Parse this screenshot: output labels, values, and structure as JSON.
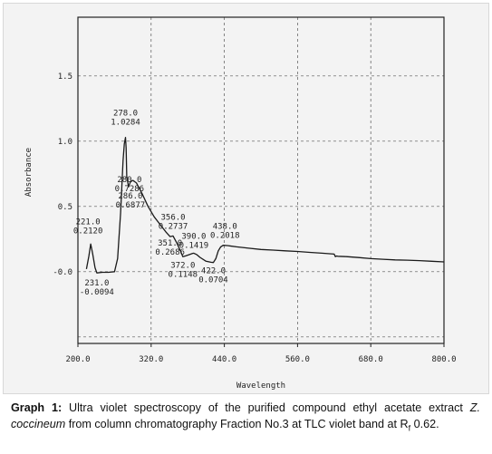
{
  "chart_data": {
    "type": "line",
    "xlabel": "Wavelength",
    "ylabel": "Absorbance",
    "xlim": [
      200,
      800
    ],
    "ylim": [
      -0.55,
      1.95
    ],
    "x_ticks": [
      "200.0",
      "320.0",
      "440.0",
      "560.0",
      "680.0",
      "800.0"
    ],
    "y_ticks": [
      "-0.0",
      "0.5",
      "1.0",
      "1.5"
    ],
    "grid": true,
    "series": [
      {
        "x": [
          214,
          218,
          221,
          224,
          228,
          231,
          240,
          250,
          260,
          265,
          270,
          274,
          276,
          278,
          279,
          280,
          283,
          286,
          290,
          296,
          305,
          315,
          325,
          335,
          345,
          351,
          356,
          362,
          368,
          372,
          376,
          382,
          388,
          390,
          395,
          400,
          410,
          418,
          422,
          426,
          430,
          434,
          438,
          445,
          460,
          480,
          500,
          520,
          540,
          560,
          580,
          600,
          620,
          622,
          624,
          626,
          640,
          660,
          680,
          700,
          720,
          740,
          760,
          780,
          800
        ],
        "y": [
          0.02,
          0.12,
          0.212,
          0.14,
          0.03,
          -0.0094,
          -0.005,
          -0.005,
          0.0,
          0.1,
          0.45,
          0.85,
          0.98,
          1.0284,
          0.95,
          0.7286,
          0.65,
          0.6877,
          0.7,
          0.68,
          0.6,
          0.5,
          0.42,
          0.36,
          0.3,
          0.2686,
          0.2737,
          0.22,
          0.16,
          0.1148,
          0.12,
          0.13,
          0.14,
          0.1419,
          0.13,
          0.11,
          0.08,
          0.072,
          0.0704,
          0.1,
          0.16,
          0.19,
          0.2018,
          0.2,
          0.19,
          0.18,
          0.17,
          0.165,
          0.16,
          0.155,
          0.148,
          0.142,
          0.135,
          0.115,
          0.12,
          0.118,
          0.115,
          0.108,
          0.1,
          0.095,
          0.09,
          0.088,
          0.085,
          0.08,
          0.075
        ]
      }
    ],
    "peak_labels": [
      {
        "wavelength": "221.0",
        "absorbance": "0.2120",
        "x": 221.0,
        "y": 0.212,
        "side": "above"
      },
      {
        "wavelength": "231.0",
        "absorbance": "-0.0094",
        "x": 231.0,
        "y": -0.0094,
        "side": "below"
      },
      {
        "wavelength": "278.0",
        "absorbance": "1.0284",
        "x": 278.0,
        "y": 1.0284,
        "side": "above"
      },
      {
        "wavelength": "280.0",
        "absorbance": "0.7286",
        "x": 280.0,
        "y": 0.7286,
        "side": "above"
      },
      {
        "wavelength": "286.0",
        "absorbance": "0.6877",
        "x": 286.0,
        "y": 0.6877,
        "side": "below"
      },
      {
        "wavelength": "356.0",
        "absorbance": "0.2737",
        "x": 356.0,
        "y": 0.2737,
        "side": "above"
      },
      {
        "wavelength": "351.0",
        "absorbance": "0.2686",
        "x": 351.0,
        "y": 0.2686,
        "side": "below"
      },
      {
        "wavelength": "390.0",
        "absorbance": "0.1419",
        "x": 390.0,
        "y": 0.1419,
        "side": "above"
      },
      {
        "wavelength": "372.0",
        "absorbance": "0.1148",
        "x": 372.0,
        "y": 0.1148,
        "side": "below"
      },
      {
        "wavelength": "422.0",
        "absorbance": "0.0704",
        "x": 422.0,
        "y": 0.0704,
        "side": "below"
      },
      {
        "wavelength": "438.0",
        "absorbance": "0.2018",
        "x": 438.0,
        "y": 0.2018,
        "side": "above"
      }
    ]
  },
  "caption": {
    "label": "Graph 1:",
    "text_part1": " Ultra violet spectroscopy of the purified compound ethyl acetate extract ",
    "species": "Z. coccineum",
    "text_part2": " from column chromatography Fraction No.3 at TLC violet band at R",
    "subscript": "f",
    "text_part3": " 0.62."
  }
}
